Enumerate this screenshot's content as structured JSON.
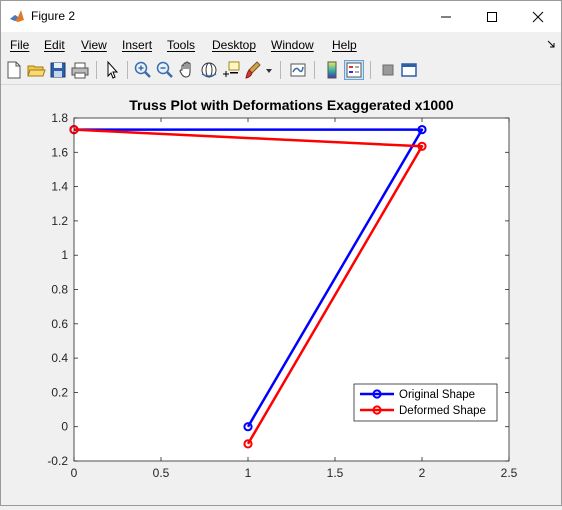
{
  "window": {
    "title": "Figure 2",
    "minimize_icon": "minimize-icon",
    "maximize_icon": "maximize-icon",
    "close_icon": "close-icon"
  },
  "menu": {
    "items": [
      "File",
      "Edit",
      "View",
      "Insert",
      "Tools",
      "Desktop",
      "Window",
      "Help"
    ]
  },
  "toolbar": {
    "buttons": [
      "new-figure-icon",
      "open-file-icon",
      "save-icon",
      "print-icon",
      "pointer-icon",
      "zoom-in-icon",
      "zoom-out-icon",
      "pan-icon",
      "rotate-3d-icon",
      "data-cursor-icon",
      "brush-icon",
      "link-plot-icon",
      "colorbar-icon",
      "legend-icon",
      "property-editor-icon",
      "dock-icon"
    ]
  },
  "colors": {
    "original": "#0000ff",
    "deformed": "#ff0000",
    "axes_bg": "#ffffff",
    "figure_bg": "#f0f0f0"
  },
  "chart_data": {
    "type": "line",
    "title": "Truss Plot with Deformations Exaggerated x1000",
    "xlabel": "",
    "ylabel": "",
    "xlim": [
      0,
      2.5
    ],
    "ylim": [
      -0.2,
      1.8
    ],
    "xticks": [
      "0",
      "0.5",
      "1",
      "1.5",
      "2",
      "2.5"
    ],
    "yticks": [
      "-0.2",
      "0",
      "0.2",
      "0.4",
      "0.6",
      "0.8",
      "1",
      "1.2",
      "1.4",
      "1.6",
      "1.8"
    ],
    "grid": false,
    "legend_position": "bottom-right",
    "series": [
      {
        "name": "Original Shape",
        "color": "#0000ff",
        "marker": "circle",
        "x": [
          1,
          2,
          0
        ],
        "y": [
          0,
          1.732,
          1.732
        ]
      },
      {
        "name": "Deformed Shape",
        "color": "#ff0000",
        "marker": "circle",
        "x": [
          1,
          2,
          0
        ],
        "y": [
          -0.1,
          1.635,
          1.732
        ]
      }
    ]
  }
}
